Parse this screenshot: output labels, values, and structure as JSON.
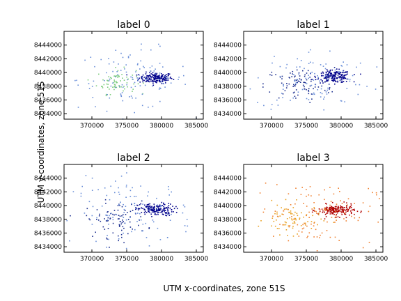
{
  "figure": {
    "xlabel": "UTM x-coordinates, zone 51S",
    "ylabel": "UTM y-coordinates, zone 51S"
  },
  "chart_data": [
    {
      "type": "scatter",
      "title": "label 0",
      "xlim": [
        366000,
        386000
      ],
      "ylim": [
        8433200,
        8446000
      ],
      "x_ticks": [
        370000,
        375000,
        380000,
        385000
      ],
      "y_ticks": [
        8434000,
        8436000,
        8438000,
        8440000,
        8442000,
        8444000
      ],
      "clusters": [
        {
          "cx": 379200,
          "cy": 8439200,
          "sx": 1200,
          "sy": 400,
          "n": 180,
          "color": "#00008b"
        },
        {
          "cx": 373500,
          "cy": 8438700,
          "sx": 1400,
          "sy": 900,
          "n": 70,
          "color": "#7ccd7c"
        },
        {
          "cx": 376000,
          "cy": 8439000,
          "sx": 4000,
          "sy": 2200,
          "n": 120,
          "color": "#6a8fd8"
        }
      ]
    },
    {
      "type": "scatter",
      "title": "label 1",
      "xlim": [
        366000,
        386000
      ],
      "ylim": [
        8433200,
        8446000
      ],
      "x_ticks": [
        370000,
        375000,
        380000,
        385000
      ],
      "y_ticks": [
        8434000,
        8436000,
        8438000,
        8440000,
        8442000,
        8444000
      ],
      "clusters": [
        {
          "cx": 379000,
          "cy": 8439400,
          "sx": 1200,
          "sy": 450,
          "n": 180,
          "color": "#00008b"
        },
        {
          "cx": 374000,
          "cy": 8438300,
          "sx": 2500,
          "sy": 1200,
          "n": 90,
          "color": "#1c2f8f"
        },
        {
          "cx": 376000,
          "cy": 8439000,
          "sx": 4200,
          "sy": 2300,
          "n": 110,
          "color": "#6a8fd8"
        }
      ]
    },
    {
      "type": "scatter",
      "title": "label 2",
      "xlim": [
        366000,
        386000
      ],
      "ylim": [
        8433200,
        8446000
      ],
      "x_ticks": [
        370000,
        375000,
        380000,
        385000
      ],
      "y_ticks": [
        8434000,
        8436000,
        8438000,
        8440000,
        8442000,
        8444000
      ],
      "clusters": [
        {
          "cx": 379200,
          "cy": 8439400,
          "sx": 1300,
          "sy": 450,
          "n": 170,
          "color": "#00008b"
        },
        {
          "cx": 373500,
          "cy": 8438000,
          "sx": 2200,
          "sy": 1300,
          "n": 90,
          "color": "#1c2f8f"
        },
        {
          "cx": 376000,
          "cy": 8439000,
          "sx": 4300,
          "sy": 2400,
          "n": 120,
          "color": "#6a8fd8"
        }
      ]
    },
    {
      "type": "scatter",
      "title": "label 3",
      "xlim": [
        366000,
        386000
      ],
      "ylim": [
        8433200,
        8446000
      ],
      "x_ticks": [
        370000,
        375000,
        380000,
        385000
      ],
      "y_ticks": [
        8434000,
        8436000,
        8438000,
        8440000,
        8442000,
        8444000
      ],
      "clusters": [
        {
          "cx": 379300,
          "cy": 8439300,
          "sx": 1300,
          "sy": 420,
          "n": 180,
          "color": "#b00000"
        },
        {
          "cx": 373000,
          "cy": 8438000,
          "sx": 2000,
          "sy": 1100,
          "n": 80,
          "color": "#e8a020"
        },
        {
          "cx": 376000,
          "cy": 8439000,
          "sx": 4300,
          "sy": 2400,
          "n": 120,
          "color": "#f08030"
        }
      ]
    }
  ]
}
